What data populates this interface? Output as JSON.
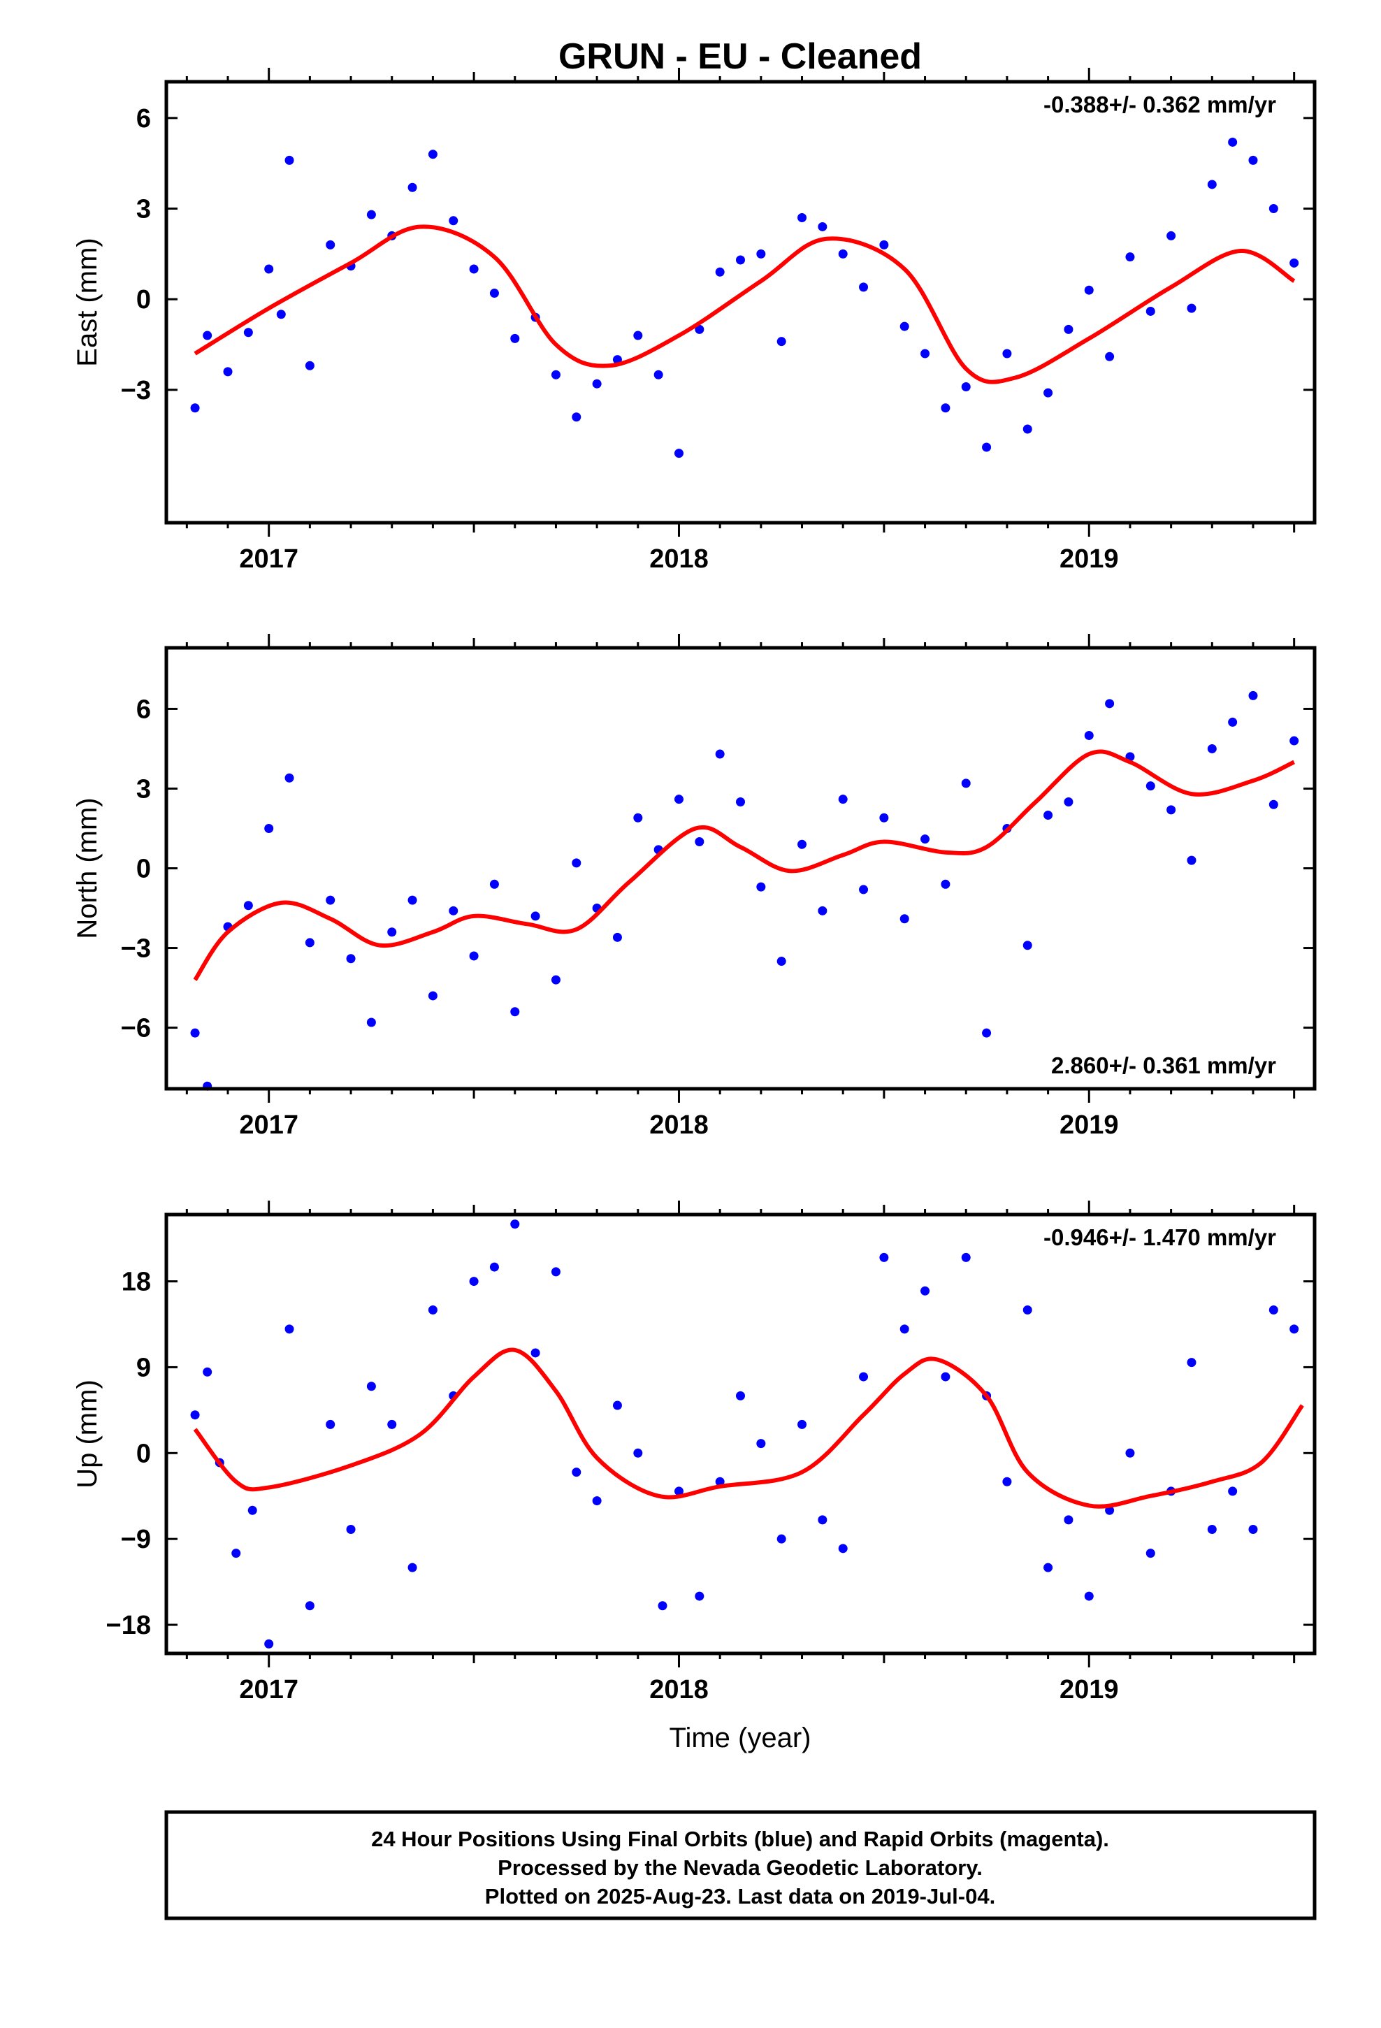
{
  "title": "GRUN  - EU - Cleaned",
  "xlabel": "Time (year)",
  "footer": {
    "line1": "24 Hour Positions Using Final Orbits (blue) and Rapid Orbits (magenta).",
    "line2": "Processed by the Nevada Geodetic Laboratory.",
    "line3": "Plotted on 2025-Aug-23. Last data on 2019-Jul-04."
  },
  "colors": {
    "final_orbits": "#0000ff",
    "rapid_orbits": "#ff00ff",
    "fit": "#ff0000"
  },
  "chart_data": [
    {
      "type": "scatter",
      "ylabel": "East (mm)",
      "rate": "-0.388+/- 0.362 mm/yr",
      "rate_position": "top-right",
      "xlim": [
        2016.75,
        2019.55
      ],
      "ylim": [
        -7.4,
        7.2
      ],
      "yticks": [
        -3,
        0,
        3,
        6
      ],
      "xticks": [
        2017,
        2018,
        2019
      ],
      "fit": {
        "x": [
          2016.82,
          2017.0,
          2017.2,
          2017.37,
          2017.55,
          2017.7,
          2017.83,
          2018.0,
          2018.2,
          2018.36,
          2018.55,
          2018.7,
          2018.82,
          2019.0,
          2019.2,
          2019.37,
          2019.5
        ],
        "y": [
          -1.8,
          -0.3,
          1.2,
          2.4,
          1.4,
          -1.5,
          -2.2,
          -1.2,
          0.6,
          2.0,
          1.0,
          -2.3,
          -2.6,
          -1.3,
          0.4,
          1.6,
          0.6
        ]
      },
      "points": {
        "x": [
          2016.82,
          2016.85,
          2016.9,
          2016.95,
          2017.0,
          2017.03,
          2017.05,
          2017.1,
          2017.15,
          2017.2,
          2017.25,
          2017.3,
          2017.35,
          2017.4,
          2017.45,
          2017.5,
          2017.55,
          2017.6,
          2017.65,
          2017.7,
          2017.75,
          2017.8,
          2017.85,
          2017.9,
          2017.95,
          2018.0,
          2018.05,
          2018.1,
          2018.15,
          2018.2,
          2018.25,
          2018.3,
          2018.35,
          2018.4,
          2018.45,
          2018.5,
          2018.55,
          2018.6,
          2018.65,
          2018.7,
          2018.75,
          2018.8,
          2018.85,
          2018.9,
          2018.95,
          2019.0,
          2019.05,
          2019.1,
          2019.15,
          2019.2,
          2019.25,
          2019.3,
          2019.35,
          2019.4,
          2019.45,
          2019.5
        ],
        "y": [
          -3.6,
          -1.2,
          -2.4,
          -1.1,
          1.0,
          -0.5,
          4.6,
          -2.2,
          1.8,
          1.1,
          2.8,
          2.1,
          3.7,
          4.8,
          2.6,
          1.0,
          0.2,
          -1.3,
          -0.6,
          -2.5,
          -3.9,
          -2.8,
          -2.0,
          -1.2,
          -2.5,
          -5.1,
          -1.0,
          0.9,
          1.3,
          1.5,
          -1.4,
          2.7,
          2.4,
          1.5,
          0.4,
          1.8,
          -0.9,
          -1.8,
          -3.6,
          -2.9,
          -4.9,
          -1.8,
          -4.3,
          -3.1,
          -1.0,
          0.3,
          -1.9,
          1.4,
          -0.4,
          2.1,
          -0.3,
          3.8,
          5.2,
          4.6,
          3.0,
          1.2
        ]
      }
    },
    {
      "type": "scatter",
      "ylabel": "North (mm)",
      "rate": "2.860+/- 0.361 mm/yr",
      "rate_position": "bottom-right",
      "xlim": [
        2016.75,
        2019.55
      ],
      "ylim": [
        -8.3,
        8.3
      ],
      "yticks": [
        -6,
        -3,
        0,
        3,
        6
      ],
      "xticks": [
        2017,
        2018,
        2019
      ],
      "fit": {
        "x": [
          2016.82,
          2016.9,
          2017.03,
          2017.15,
          2017.27,
          2017.4,
          2017.5,
          2017.63,
          2017.75,
          2017.88,
          2018.04,
          2018.15,
          2018.27,
          2018.4,
          2018.5,
          2018.65,
          2018.75,
          2018.87,
          2019.0,
          2019.1,
          2019.25,
          2019.4,
          2019.5
        ],
        "y": [
          -4.2,
          -2.4,
          -1.3,
          -1.9,
          -2.9,
          -2.4,
          -1.8,
          -2.1,
          -2.3,
          -0.5,
          1.5,
          0.8,
          -0.1,
          0.5,
          1.0,
          0.6,
          0.8,
          2.5,
          4.3,
          4.0,
          2.8,
          3.3,
          4.0
        ]
      },
      "points": {
        "x": [
          2016.82,
          2016.85,
          2016.9,
          2016.95,
          2017.0,
          2017.05,
          2017.1,
          2017.15,
          2017.2,
          2017.25,
          2017.3,
          2017.35,
          2017.4,
          2017.45,
          2017.5,
          2017.55,
          2017.6,
          2017.65,
          2017.7,
          2017.75,
          2017.8,
          2017.85,
          2017.9,
          2017.95,
          2018.0,
          2018.05,
          2018.1,
          2018.15,
          2018.2,
          2018.25,
          2018.3,
          2018.35,
          2018.4,
          2018.45,
          2018.5,
          2018.55,
          2018.6,
          2018.65,
          2018.7,
          2018.75,
          2018.8,
          2018.85,
          2018.9,
          2018.95,
          2019.0,
          2019.05,
          2019.1,
          2019.15,
          2019.2,
          2019.25,
          2019.3,
          2019.35,
          2019.4,
          2019.45,
          2019.5
        ],
        "y": [
          -6.2,
          -8.2,
          -2.2,
          -1.4,
          1.5,
          3.4,
          -2.8,
          -1.2,
          -3.4,
          -5.8,
          -2.4,
          -1.2,
          -4.8,
          -1.6,
          -3.3,
          -0.6,
          -5.4,
          -1.8,
          -4.2,
          0.2,
          -1.5,
          -2.6,
          1.9,
          0.7,
          2.6,
          1.0,
          4.3,
          2.5,
          -0.7,
          -3.5,
          0.9,
          -1.6,
          2.6,
          -0.8,
          1.9,
          -1.9,
          1.1,
          -0.6,
          3.2,
          -6.2,
          1.5,
          -2.9,
          2.0,
          2.5,
          5.0,
          6.2,
          4.2,
          3.1,
          2.2,
          0.3,
          4.5,
          5.5,
          6.5,
          2.4,
          4.8
        ]
      }
    },
    {
      "type": "scatter",
      "ylabel": "Up (mm)",
      "rate": "-0.946+/- 1.470 mm/yr",
      "rate_position": "top-right",
      "xlim": [
        2016.75,
        2019.55
      ],
      "ylim": [
        -21,
        25
      ],
      "yticks": [
        -18,
        -9,
        0,
        9,
        18
      ],
      "xticks": [
        2017,
        2018,
        2019
      ],
      "fit": {
        "x": [
          2016.82,
          2016.92,
          2017.0,
          2017.2,
          2017.37,
          2017.5,
          2017.6,
          2017.7,
          2017.8,
          2017.95,
          2018.1,
          2018.3,
          2018.45,
          2018.55,
          2018.63,
          2018.75,
          2018.85,
          2019.0,
          2019.15,
          2019.3,
          2019.42,
          2019.52
        ],
        "y": [
          2.5,
          -3.0,
          -3.6,
          -1.3,
          2.0,
          8.0,
          10.8,
          6.5,
          -0.5,
          -4.5,
          -3.5,
          -2.0,
          4.0,
          8.3,
          9.8,
          6.0,
          -2.0,
          -5.5,
          -4.5,
          -3.0,
          -1.0,
          5.0
        ]
      },
      "points": {
        "x": [
          2016.82,
          2016.85,
          2016.88,
          2016.92,
          2016.96,
          2017.0,
          2017.05,
          2017.1,
          2017.15,
          2017.2,
          2017.25,
          2017.3,
          2017.35,
          2017.4,
          2017.45,
          2017.5,
          2017.55,
          2017.6,
          2017.65,
          2017.7,
          2017.75,
          2017.8,
          2017.85,
          2017.9,
          2017.96,
          2018.0,
          2018.05,
          2018.1,
          2018.15,
          2018.2,
          2018.25,
          2018.3,
          2018.35,
          2018.4,
          2018.45,
          2018.5,
          2018.55,
          2018.6,
          2018.65,
          2018.7,
          2018.75,
          2018.8,
          2018.85,
          2018.9,
          2018.95,
          2019.0,
          2019.05,
          2019.1,
          2019.15,
          2019.2,
          2019.25,
          2019.3,
          2019.35,
          2019.4,
          2019.45,
          2019.5
        ],
        "y": [
          4.0,
          8.5,
          -1.0,
          -10.5,
          -6.0,
          -20.0,
          13.0,
          -16.0,
          3.0,
          -8.0,
          7.0,
          3.0,
          -12.0,
          15.0,
          6.0,
          18.0,
          19.5,
          24.0,
          10.5,
          19.0,
          -2.0,
          -5.0,
          5.0,
          0.0,
          -16.0,
          -4.0,
          -15.0,
          -3.0,
          6.0,
          1.0,
          -9.0,
          3.0,
          -7.0,
          -10.0,
          8.0,
          20.5,
          13.0,
          17.0,
          8.0,
          20.5,
          6.0,
          -3.0,
          15.0,
          -12.0,
          -7.0,
          -15.0,
          -6.0,
          0.0,
          -10.5,
          -4.0,
          9.5,
          -8.0,
          -4.0,
          -8.0,
          15.0,
          13.0
        ]
      }
    }
  ]
}
